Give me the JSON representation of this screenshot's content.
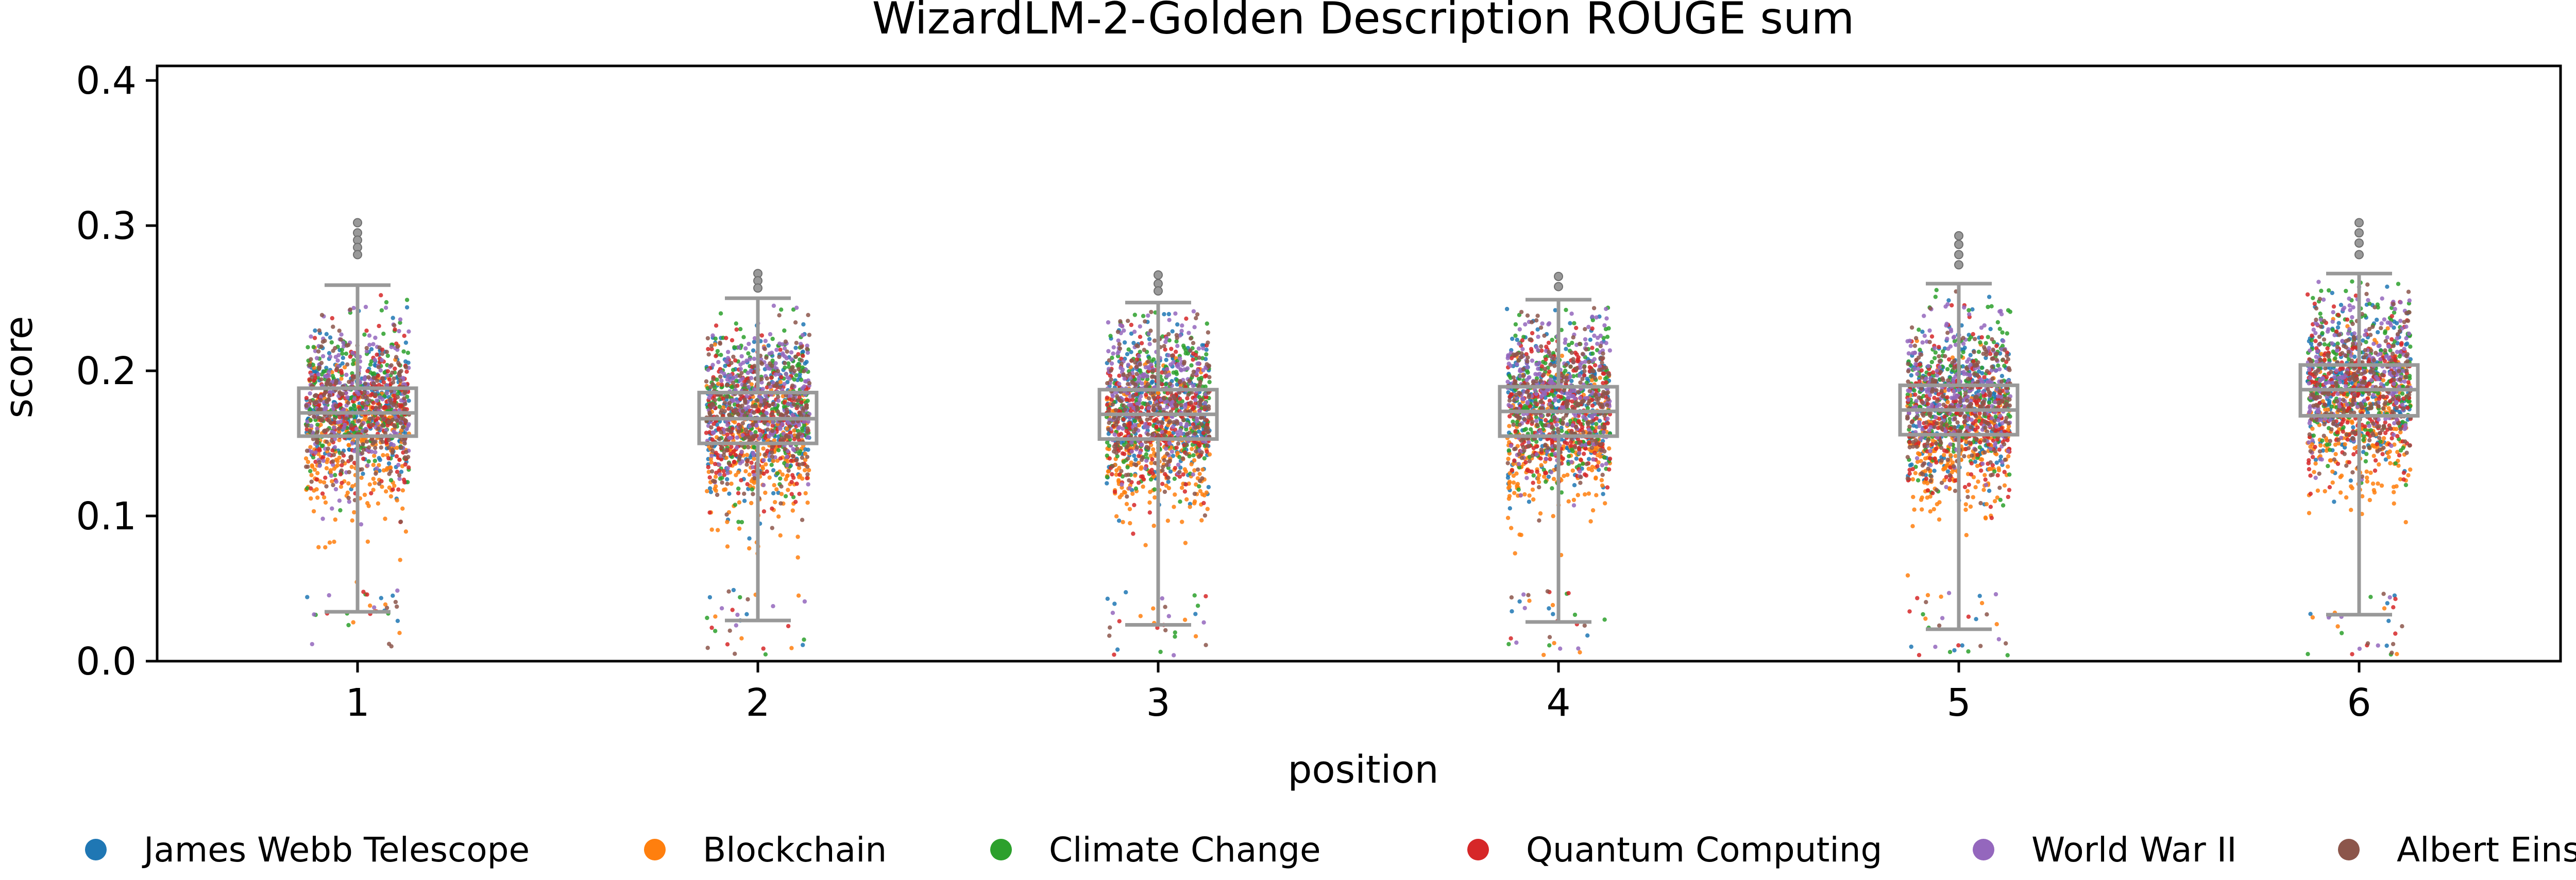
{
  "chart_data": {
    "type": "box-strip",
    "title": "WizardLM-2-Golden Description ROUGE sum",
    "xlabel": "position",
    "ylabel": "score",
    "ylim": [
      0.0,
      0.41
    ],
    "yticks": [
      "0.0",
      "0.1",
      "0.2",
      "0.3",
      "0.4"
    ],
    "ytick_values": [
      0.0,
      0.1,
      0.2,
      0.3,
      0.4
    ],
    "categories": [
      "1",
      "2",
      "3",
      "4",
      "5",
      "6"
    ],
    "box_color": "#999999",
    "boxes": [
      {
        "position": "1",
        "q1": 0.155,
        "median": 0.171,
        "q3": 0.188,
        "whisker_low": 0.034,
        "whisker_high": 0.259,
        "outliers": [
          0.302,
          0.295,
          0.29,
          0.285,
          0.28
        ]
      },
      {
        "position": "2",
        "q1": 0.15,
        "median": 0.167,
        "q3": 0.185,
        "whisker_low": 0.028,
        "whisker_high": 0.25,
        "outliers": [
          0.267,
          0.262,
          0.257
        ]
      },
      {
        "position": "3",
        "q1": 0.153,
        "median": 0.17,
        "q3": 0.187,
        "whisker_low": 0.025,
        "whisker_high": 0.247,
        "outliers": [
          0.266,
          0.26,
          0.255
        ]
      },
      {
        "position": "4",
        "q1": 0.155,
        "median": 0.172,
        "q3": 0.189,
        "whisker_low": 0.027,
        "whisker_high": 0.249,
        "outliers": [
          0.265,
          0.258
        ]
      },
      {
        "position": "5",
        "q1": 0.156,
        "median": 0.173,
        "q3": 0.19,
        "whisker_low": 0.022,
        "whisker_high": 0.26,
        "outliers": [
          0.293,
          0.287,
          0.28,
          0.273
        ]
      },
      {
        "position": "6",
        "q1": 0.169,
        "median": 0.187,
        "q3": 0.204,
        "whisker_low": 0.032,
        "whisker_high": 0.267,
        "outliers": [
          0.302,
          0.295,
          0.288,
          0.28
        ]
      }
    ],
    "series": [
      {
        "name": "James Webb Telescope",
        "color": "#1f77b4",
        "median": 0.175
      },
      {
        "name": "Blockchain",
        "color": "#ff7f0e",
        "median": 0.145
      },
      {
        "name": "Climate Change",
        "color": "#2ca02c",
        "median": 0.178
      },
      {
        "name": "Quantum Computing",
        "color": "#d62728",
        "median": 0.17
      },
      {
        "name": "World War II",
        "color": "#9467bd",
        "median": 0.182
      },
      {
        "name": "Albert Einstein",
        "color": "#8c564b",
        "median": 0.174
      }
    ],
    "legend_position": "bottom",
    "grid": false
  }
}
